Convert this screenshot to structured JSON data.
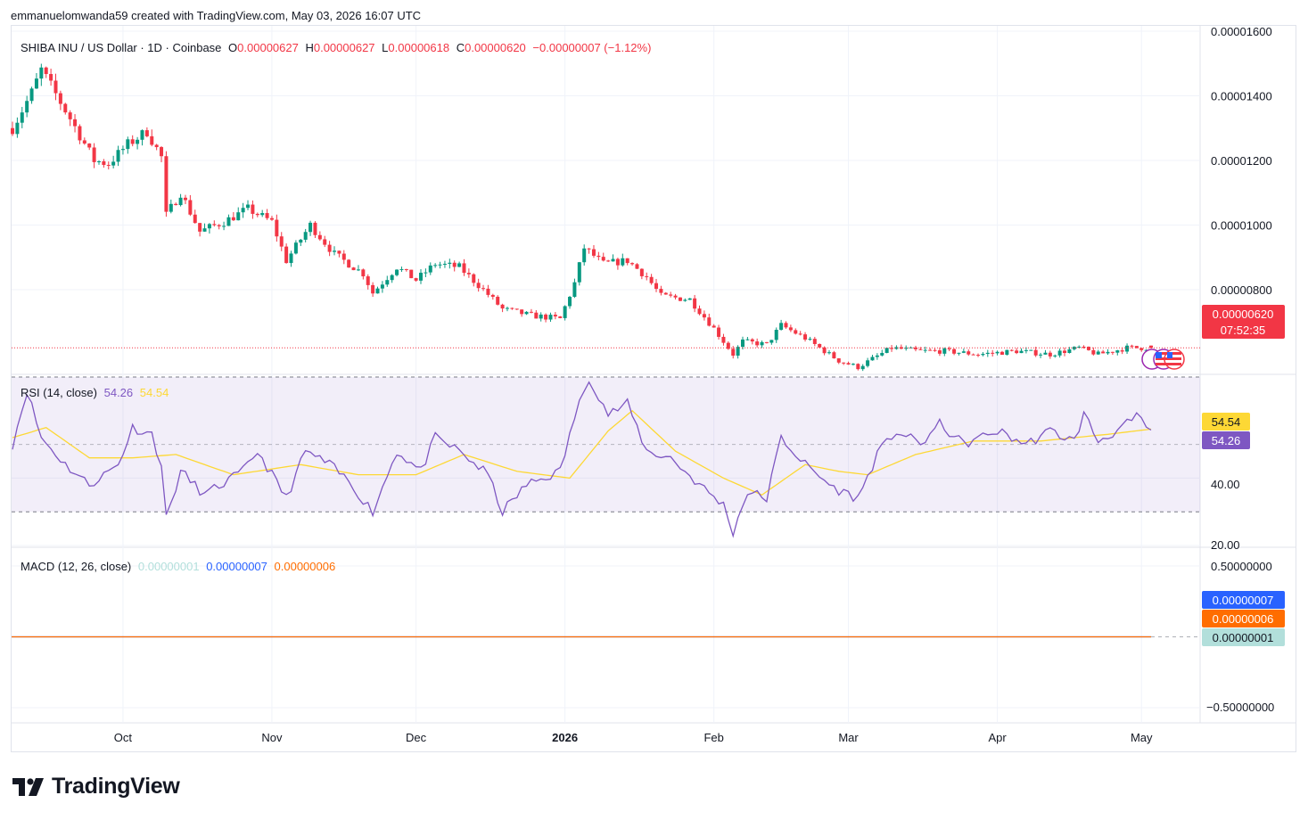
{
  "header": {
    "attribution": "emmanuelomwanda59 created with TradingView.com, May 03, 2026 16:07 UTC"
  },
  "symbol": {
    "title": "SHIBA INU / US Dollar · 1D · Coinbase",
    "open_label": "O",
    "open": "0.00000627",
    "high_label": "H",
    "high": "0.00000627",
    "low_label": "L",
    "low": "0.00000618",
    "close_label": "C",
    "close": "0.00000620",
    "change": "−0.00000007 (−1.12%)"
  },
  "price_axis": {
    "ticks": [
      "0.00001600",
      "0.00001400",
      "0.00001200",
      "0.00001000",
      "0.00000800"
    ],
    "last_price": "0.00000620",
    "countdown": "07:52:35"
  },
  "rsi": {
    "title": "RSI (14, close)",
    "value": "54.26",
    "ma_value": "54.54",
    "ticks": [
      "40.00",
      "20.00"
    ],
    "badge_ma": "54.54",
    "badge_rsi": "54.26"
  },
  "macd": {
    "title": "MACD (12, 26, close)",
    "histogram": "0.00000001",
    "macd": "0.00000007",
    "signal": "0.00000006",
    "ticks": [
      "0.50000000",
      "−0.50000000"
    ],
    "badge_macd": "0.00000007",
    "badge_signal": "0.00000006",
    "badge_hist": "0.00000001"
  },
  "time_axis": {
    "labels": [
      "Oct",
      "Nov",
      "Dec",
      "2026",
      "Feb",
      "Mar",
      "Apr",
      "May"
    ]
  },
  "brand": {
    "name": "TradingView"
  },
  "colors": {
    "up": "#089981",
    "down": "#f23645",
    "rsi_line": "#7e57c2",
    "rsi_ma": "#fdd835",
    "macd_line": "#2962ff",
    "signal_line": "#ff6d00",
    "histogram": "#b2dfdb",
    "rsi_band": "#7e57c2"
  },
  "chart_data": {
    "type": "candlestick",
    "series_label": "SHIBA INU / US Dollar",
    "interval": "1D",
    "y_unit": "USD",
    "ylim": [
      5.6e-06,
      1.6e-05
    ],
    "x_start": "2025-09-08",
    "x_end": "2026-05-03",
    "close_anchors": [
      {
        "date": "2025-09-08",
        "close": 1.3e-05
      },
      {
        "date": "2025-09-12",
        "close": 1.41e-05
      },
      {
        "date": "2025-09-14",
        "close": 1.48e-05
      },
      {
        "date": "2025-09-20",
        "close": 1.33e-05
      },
      {
        "date": "2025-09-25",
        "close": 1.2e-05
      },
      {
        "date": "2025-09-28",
        "close": 1.19e-05
      },
      {
        "date": "2025-10-02",
        "close": 1.25e-05
      },
      {
        "date": "2025-10-06",
        "close": 1.29e-05
      },
      {
        "date": "2025-10-09",
        "close": 1.21e-05
      },
      {
        "date": "2025-10-10",
        "close": 1.03e-05
      },
      {
        "date": "2025-10-13",
        "close": 1.1e-05
      },
      {
        "date": "2025-10-17",
        "close": 9.8e-06
      },
      {
        "date": "2025-10-22",
        "close": 1.01e-05
      },
      {
        "date": "2025-10-27",
        "close": 1.05e-05
      },
      {
        "date": "2025-11-01",
        "close": 1.01e-05
      },
      {
        "date": "2025-11-04",
        "close": 8.9e-06
      },
      {
        "date": "2025-11-09",
        "close": 1e-05
      },
      {
        "date": "2025-11-14",
        "close": 9.1e-06
      },
      {
        "date": "2025-11-20",
        "close": 8.5e-06
      },
      {
        "date": "2025-11-22",
        "close": 7.9e-06
      },
      {
        "date": "2025-11-27",
        "close": 8.7e-06
      },
      {
        "date": "2025-12-01",
        "close": 8.3e-06
      },
      {
        "date": "2025-12-05",
        "close": 8.8e-06
      },
      {
        "date": "2025-12-10",
        "close": 8.7e-06
      },
      {
        "date": "2025-12-15",
        "close": 8e-06
      },
      {
        "date": "2025-12-19",
        "close": 7.4e-06
      },
      {
        "date": "2025-12-25",
        "close": 7.2e-06
      },
      {
        "date": "2025-12-31",
        "close": 7.1e-06
      },
      {
        "date": "2026-01-03",
        "close": 8.2e-06
      },
      {
        "date": "2026-01-05",
        "close": 9.3e-06
      },
      {
        "date": "2026-01-09",
        "close": 8.8e-06
      },
      {
        "date": "2026-01-14",
        "close": 8.9e-06
      },
      {
        "date": "2026-01-18",
        "close": 8.4e-06
      },
      {
        "date": "2026-01-21",
        "close": 7.8e-06
      },
      {
        "date": "2026-01-27",
        "close": 7.7e-06
      },
      {
        "date": "2026-02-01",
        "close": 6.8e-06
      },
      {
        "date": "2026-02-05",
        "close": 6e-06
      },
      {
        "date": "2026-02-07",
        "close": 6.4e-06
      },
      {
        "date": "2026-02-12",
        "close": 6.3e-06
      },
      {
        "date": "2026-02-15",
        "close": 6.9e-06
      },
      {
        "date": "2026-02-20",
        "close": 6.5e-06
      },
      {
        "date": "2026-02-27",
        "close": 5.8e-06
      },
      {
        "date": "2026-03-03",
        "close": 5.6e-06
      },
      {
        "date": "2026-03-10",
        "close": 6.2e-06
      },
      {
        "date": "2026-03-16",
        "close": 6.1e-06
      },
      {
        "date": "2026-03-21",
        "close": 6.1e-06
      },
      {
        "date": "2026-03-28",
        "close": 6e-06
      },
      {
        "date": "2026-04-05",
        "close": 6.1e-06
      },
      {
        "date": "2026-04-12",
        "close": 6e-06
      },
      {
        "date": "2026-04-18",
        "close": 6.2e-06
      },
      {
        "date": "2026-04-22",
        "close": 6e-06
      },
      {
        "date": "2026-04-28",
        "close": 6.2e-06
      },
      {
        "date": "2026-05-03",
        "close": 6.2e-06
      }
    ],
    "last": {
      "open": 6.27e-06,
      "high": 6.27e-06,
      "low": 6.18e-06,
      "close": 6.2e-06
    },
    "rsi_ylim": [
      20,
      70
    ],
    "rsi_bands": [
      30,
      50,
      70
    ],
    "rsi_anchors": [
      {
        "date": "2025-09-08",
        "value": 50
      },
      {
        "date": "2025-09-11",
        "value": 66
      },
      {
        "date": "2025-09-14",
        "value": 52
      },
      {
        "date": "2025-09-19",
        "value": 44
      },
      {
        "date": "2025-09-24",
        "value": 38
      },
      {
        "date": "2025-09-30",
        "value": 44
      },
      {
        "date": "2025-10-03",
        "value": 55
      },
      {
        "date": "2025-10-07",
        "value": 53
      },
      {
        "date": "2025-10-09",
        "value": 44
      },
      {
        "date": "2025-10-10",
        "value": 28
      },
      {
        "date": "2025-10-13",
        "value": 42
      },
      {
        "date": "2025-10-18",
        "value": 35
      },
      {
        "date": "2025-10-26",
        "value": 42
      },
      {
        "date": "2025-10-29",
        "value": 48
      },
      {
        "date": "2025-11-04",
        "value": 34
      },
      {
        "date": "2025-11-08",
        "value": 48
      },
      {
        "date": "2025-11-13",
        "value": 44
      },
      {
        "date": "2025-11-17",
        "value": 39
      },
      {
        "date": "2025-11-22",
        "value": 30
      },
      {
        "date": "2025-11-27",
        "value": 48
      },
      {
        "date": "2025-12-02",
        "value": 42
      },
      {
        "date": "2025-12-05",
        "value": 52
      },
      {
        "date": "2025-12-10",
        "value": 48
      },
      {
        "date": "2025-12-16",
        "value": 41
      },
      {
        "date": "2025-12-19",
        "value": 30
      },
      {
        "date": "2025-12-24",
        "value": 38
      },
      {
        "date": "2025-12-31",
        "value": 42
      },
      {
        "date": "2026-01-03",
        "value": 58
      },
      {
        "date": "2026-01-06",
        "value": 70
      },
      {
        "date": "2026-01-10",
        "value": 59
      },
      {
        "date": "2026-01-14",
        "value": 62
      },
      {
        "date": "2026-01-18",
        "value": 48
      },
      {
        "date": "2026-01-23",
        "value": 46
      },
      {
        "date": "2026-01-29",
        "value": 38
      },
      {
        "date": "2026-02-03",
        "value": 32
      },
      {
        "date": "2026-02-05",
        "value": 24
      },
      {
        "date": "2026-02-08",
        "value": 36
      },
      {
        "date": "2026-02-12",
        "value": 34
      },
      {
        "date": "2026-02-15",
        "value": 52
      },
      {
        "date": "2026-02-20",
        "value": 44
      },
      {
        "date": "2026-02-26",
        "value": 37
      },
      {
        "date": "2026-03-03",
        "value": 34
      },
      {
        "date": "2026-03-07",
        "value": 47
      },
      {
        "date": "2026-03-11",
        "value": 54
      },
      {
        "date": "2026-03-16",
        "value": 50
      },
      {
        "date": "2026-03-20",
        "value": 56
      },
      {
        "date": "2026-03-25",
        "value": 50
      },
      {
        "date": "2026-04-01",
        "value": 54
      },
      {
        "date": "2026-04-07",
        "value": 50
      },
      {
        "date": "2026-04-12",
        "value": 54
      },
      {
        "date": "2026-04-17",
        "value": 51
      },
      {
        "date": "2026-04-19",
        "value": 59
      },
      {
        "date": "2026-04-22",
        "value": 51
      },
      {
        "date": "2026-04-27",
        "value": 55
      },
      {
        "date": "2026-04-30",
        "value": 58
      },
      {
        "date": "2026-05-03",
        "value": 54.26
      }
    ],
    "rsi_ma_anchors": [
      {
        "date": "2025-09-08",
        "value": 52
      },
      {
        "date": "2025-09-15",
        "value": 55
      },
      {
        "date": "2025-09-24",
        "value": 46
      },
      {
        "date": "2025-10-03",
        "value": 46
      },
      {
        "date": "2025-10-12",
        "value": 47
      },
      {
        "date": "2025-10-24",
        "value": 41
      },
      {
        "date": "2025-11-07",
        "value": 44
      },
      {
        "date": "2025-11-19",
        "value": 41
      },
      {
        "date": "2025-12-01",
        "value": 41
      },
      {
        "date": "2025-12-11",
        "value": 47
      },
      {
        "date": "2025-12-22",
        "value": 42
      },
      {
        "date": "2026-01-02",
        "value": 40
      },
      {
        "date": "2026-01-10",
        "value": 54
      },
      {
        "date": "2026-01-15",
        "value": 60
      },
      {
        "date": "2026-01-24",
        "value": 48
      },
      {
        "date": "2026-02-03",
        "value": 40
      },
      {
        "date": "2026-02-11",
        "value": 35
      },
      {
        "date": "2026-02-20",
        "value": 44
      },
      {
        "date": "2026-02-27",
        "value": 42
      },
      {
        "date": "2026-03-05",
        "value": 41
      },
      {
        "date": "2026-03-15",
        "value": 47
      },
      {
        "date": "2026-03-27",
        "value": 51
      },
      {
        "date": "2026-04-10",
        "value": 51
      },
      {
        "date": "2026-04-24",
        "value": 53
      },
      {
        "date": "2026-05-03",
        "value": 54.54
      }
    ],
    "macd_ylim": [
      -0.5,
      0.5
    ],
    "macd_values": {
      "macd": 7e-08,
      "signal": 6e-08,
      "histogram": 1e-08
    }
  }
}
